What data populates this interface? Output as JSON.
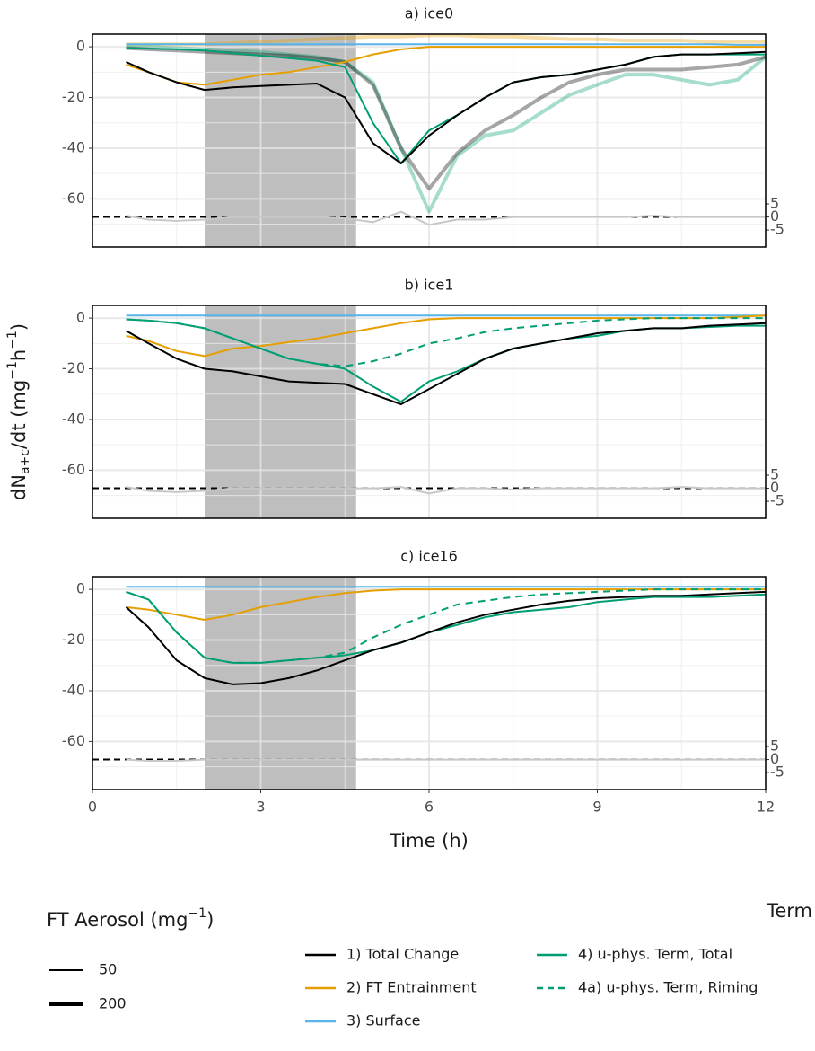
{
  "chart_data": [
    {
      "type": "line",
      "title": "a) ice0",
      "xlim": [
        0,
        12
      ],
      "xticks": [
        0,
        3,
        6,
        9,
        12
      ],
      "x_minor": [
        1.5,
        4.5,
        7.5,
        10.5
      ],
      "ylim": [
        -79,
        5
      ],
      "yticks": [
        -60,
        -40,
        -20,
        0
      ],
      "y_minor": [
        -70,
        -50,
        -30,
        -10
      ],
      "y2lim": [
        -11.5,
        70
      ],
      "y2ticks": [
        5,
        0,
        -5
      ],
      "hline_y2": 0,
      "shade": [
        2,
        4.7
      ],
      "x": [
        0.6,
        1,
        1.5,
        2,
        2.5,
        3,
        3.5,
        4,
        4.5,
        5,
        5.5,
        6,
        6.5,
        7,
        7.5,
        8,
        8.5,
        9,
        9.5,
        10,
        10.5,
        11,
        11.5,
        12
      ],
      "series": [
        {
          "term": 1,
          "aerosol": 1,
          "values": [
            1,
            1,
            1,
            1,
            1.5,
            2,
            2.5,
            3,
            3.5,
            4,
            4,
            4.5,
            4.5,
            4,
            4,
            3.5,
            3,
            3,
            2.5,
            2.5,
            2.5,
            2,
            2,
            2
          ]
        },
        {
          "term": 3,
          "aerosol": 1,
          "values": [
            0,
            0,
            -0.5,
            -1,
            -1.5,
            -2,
            -3,
            -4,
            -6,
            -14,
            -40,
            -65,
            -43,
            -35,
            -33,
            -26,
            -19,
            -15,
            -11,
            -11,
            -13,
            -15,
            -13,
            -4
          ]
        },
        {
          "term": 0,
          "aerosol": 1,
          "values": [
            -0.5,
            -1,
            -1.5,
            -2,
            -2.5,
            -3,
            -3.5,
            -4.5,
            -6,
            -15,
            -40,
            -56,
            -42,
            -33,
            -27,
            -20,
            -14,
            -11,
            -9,
            -9,
            -9,
            -8,
            -7,
            -4
          ]
        },
        {
          "axis": "y2",
          "color": "#c8c8c8",
          "values": [
            0.5,
            -1,
            -1.5,
            -1,
            0,
            0,
            0,
            0,
            -0.5,
            -2,
            2,
            -3,
            -1,
            -1,
            0,
            0,
            0,
            0,
            0,
            0.5,
            0,
            0,
            0,
            0
          ]
        },
        {
          "term": 2,
          "aerosol": 0,
          "values": [
            1,
            1,
            1,
            1,
            1,
            1,
            1,
            1,
            1,
            1,
            1,
            1,
            1,
            1,
            1,
            1,
            1,
            1,
            1,
            1,
            1,
            1,
            0.8,
            0.8
          ]
        },
        {
          "term": 1,
          "aerosol": 0,
          "values": [
            -7,
            -10,
            -14,
            -15,
            -13,
            -11,
            -10,
            -8,
            -6,
            -3,
            -1,
            0,
            0,
            0,
            0,
            0,
            0,
            0,
            0,
            0,
            0,
            0,
            0,
            0
          ]
        },
        {
          "term": 3,
          "aerosol": 0,
          "values": [
            -0.5,
            -0.7,
            -1,
            -1.5,
            -2.5,
            -3.5,
            -4.5,
            -5.5,
            -8,
            -30,
            -46,
            -33,
            -27,
            -20,
            -14,
            -12,
            -11,
            -9,
            -7,
            -4,
            -3,
            -3,
            -3,
            -3
          ]
        },
        {
          "term": 0,
          "aerosol": 0,
          "values": [
            -6,
            -10,
            -14,
            -17,
            -16,
            -15.5,
            -15,
            -14.5,
            -20,
            -38,
            -46,
            -35,
            -27,
            -20,
            -14,
            -12,
            -11,
            -9,
            -7,
            -4,
            -3,
            -3,
            -2.5,
            -2
          ]
        }
      ]
    },
    {
      "type": "line",
      "title": "b) ice1",
      "xlim": [
        0,
        12
      ],
      "xticks": [
        0,
        3,
        6,
        9,
        12
      ],
      "x_minor": [
        1.5,
        4.5,
        7.5,
        10.5
      ],
      "ylim": [
        -79,
        5
      ],
      "yticks": [
        -60,
        -40,
        -20,
        0
      ],
      "y_minor": [
        -70,
        -50,
        -30,
        -10
      ],
      "y2lim": [
        -11.5,
        70
      ],
      "y2ticks": [
        5,
        0,
        -5
      ],
      "hline_y2": 0,
      "shade": [
        2,
        4.7
      ],
      "ylabel_parts": [
        "dN",
        "a+c",
        "/dt (mg",
        "−1",
        "h",
        "−1",
        ")"
      ],
      "x": [
        0.6,
        1,
        1.5,
        2,
        2.5,
        3,
        3.5,
        4,
        4.5,
        5,
        5.5,
        6,
        6.5,
        7,
        7.5,
        8,
        8.5,
        9,
        9.5,
        10,
        10.5,
        11,
        11.5,
        12
      ],
      "series": [
        {
          "axis": "y2",
          "color": "#c8c8c8",
          "values": [
            0.5,
            -1,
            -1.5,
            -1,
            0,
            0,
            0,
            0,
            0,
            0,
            0.5,
            -2,
            0,
            0,
            -0.5,
            0,
            0,
            0,
            0,
            0,
            0.5,
            0,
            0,
            0
          ]
        },
        {
          "term": 2,
          "aerosol": 0,
          "values": [
            1,
            1,
            1,
            1,
            1,
            1,
            1,
            1,
            1,
            1,
            1,
            1,
            1,
            1,
            1,
            1,
            1,
            1,
            1,
            1,
            1,
            1,
            1,
            1
          ]
        },
        {
          "term": 1,
          "aerosol": 0,
          "values": [
            -7,
            -9,
            -13,
            -15,
            -12,
            -11,
            -9.5,
            -8,
            -6,
            -4,
            -2,
            -0.5,
            0,
            0,
            0,
            0,
            0,
            0,
            0,
            0,
            0,
            0,
            0.5,
            1
          ]
        },
        {
          "term": 4,
          "aerosol": 0,
          "values": [
            -0.5,
            -1,
            -2,
            -4,
            -8,
            -12,
            -16,
            -18,
            -19,
            -17,
            -14,
            -10,
            -8,
            -5.5,
            -4,
            -3,
            -2,
            -1,
            -0.5,
            0,
            0,
            0,
            0,
            0
          ]
        },
        {
          "term": 3,
          "aerosol": 0,
          "values": [
            -0.5,
            -1,
            -2,
            -4,
            -8,
            -12,
            -16,
            -18,
            -20,
            -27,
            -33,
            -25,
            -21,
            -16,
            -12,
            -10,
            -8,
            -7,
            -5,
            -4,
            -4,
            -3.5,
            -3,
            -3
          ]
        },
        {
          "term": 0,
          "aerosol": 0,
          "values": [
            -5,
            -10,
            -16,
            -20,
            -21,
            -23,
            -25,
            -25.5,
            -26,
            -30,
            -34,
            -28,
            -22,
            -16,
            -12,
            -10,
            -8,
            -6,
            -5,
            -4,
            -4,
            -3,
            -2.5,
            -2
          ]
        }
      ]
    },
    {
      "type": "line",
      "title": "c) ice16",
      "xlim": [
        0,
        12
      ],
      "xticks": [
        0,
        3,
        6,
        9,
        12
      ],
      "x_minor": [
        1.5,
        4.5,
        7.5,
        10.5
      ],
      "ylim": [
        -79,
        5
      ],
      "yticks": [
        -60,
        -40,
        -20,
        0
      ],
      "y_minor": [
        -70,
        -50,
        -30,
        -10
      ],
      "y2lim": [
        -11.5,
        70
      ],
      "y2ticks": [
        5,
        0,
        -5
      ],
      "hline_y2": 0,
      "shade": [
        2,
        4.7
      ],
      "xlabel": "Time (h)",
      "x": [
        0.6,
        1,
        1.5,
        2,
        2.5,
        3,
        3.5,
        4,
        4.5,
        5,
        5.5,
        6,
        6.5,
        7,
        7.5,
        8,
        8.5,
        9,
        9.5,
        10,
        10.5,
        11,
        11.5,
        12
      ],
      "series": [
        {
          "axis": "y2",
          "color": "#c8c8c8",
          "values": [
            0,
            -0.5,
            -0.5,
            0,
            0,
            0,
            0,
            0,
            0,
            0,
            0,
            0,
            0,
            0,
            0,
            0,
            0,
            0,
            0,
            0,
            0,
            0,
            0,
            0
          ]
        },
        {
          "term": 2,
          "aerosol": 0,
          "values": [
            1,
            1,
            1,
            1,
            1,
            1,
            1,
            1,
            1,
            1,
            1,
            1,
            1,
            1,
            1,
            1,
            1,
            1,
            1,
            1,
            1,
            1,
            1,
            1
          ]
        },
        {
          "term": 1,
          "aerosol": 0,
          "values": [
            -7,
            -8,
            -10,
            -12,
            -10,
            -7,
            -5,
            -3,
            -1.5,
            -0.5,
            0,
            0,
            0,
            0,
            0,
            0,
            0,
            0,
            0,
            0,
            0,
            0,
            0,
            0
          ]
        },
        {
          "term": 4,
          "aerosol": 0,
          "values": [
            -1,
            -4,
            -17,
            -27,
            -29,
            -29,
            -28,
            -27,
            -25,
            -19,
            -14,
            -10,
            -6,
            -4.5,
            -3,
            -2,
            -1.5,
            -1,
            -0.5,
            0,
            0,
            0,
            0,
            0
          ]
        },
        {
          "term": 3,
          "aerosol": 0,
          "values": [
            -1,
            -4,
            -17,
            -27,
            -29,
            -29,
            -28,
            -27,
            -26,
            -24,
            -21,
            -17,
            -14,
            -11,
            -9,
            -8,
            -7,
            -5,
            -4,
            -3,
            -3,
            -3,
            -2.5,
            -2
          ]
        },
        {
          "term": 0,
          "aerosol": 0,
          "values": [
            -7,
            -15,
            -28,
            -35,
            -37.5,
            -37,
            -35,
            -32,
            -28,
            -24,
            -21,
            -17,
            -13,
            -10,
            -8,
            -6,
            -4.5,
            -3.5,
            -3,
            -2.5,
            -2.5,
            -2,
            -1.5,
            -1
          ]
        }
      ]
    }
  ],
  "legends": {
    "aerosol": {
      "title_parts": [
        "FT Aerosol (mg",
        "−1",
        ")"
      ],
      "entries": [
        {
          "label": "50",
          "width": 2
        },
        {
          "label": "200",
          "width": 4
        }
      ]
    },
    "term": {
      "title": "Term",
      "entries": [
        {
          "label": "1) Total Change",
          "color": "#000000",
          "dash": false
        },
        {
          "label": "2) FT Entrainment",
          "color": "#e69f00",
          "dash": false
        },
        {
          "label": "3) Surface",
          "color": "#56b4e9",
          "dash": false
        },
        {
          "label": "4) u-phys. Term, Total",
          "color": "#009e73",
          "dash": false
        },
        {
          "label": "4a) u-phys. Term, Riming",
          "color": "#009e73",
          "dash": true
        }
      ]
    }
  }
}
